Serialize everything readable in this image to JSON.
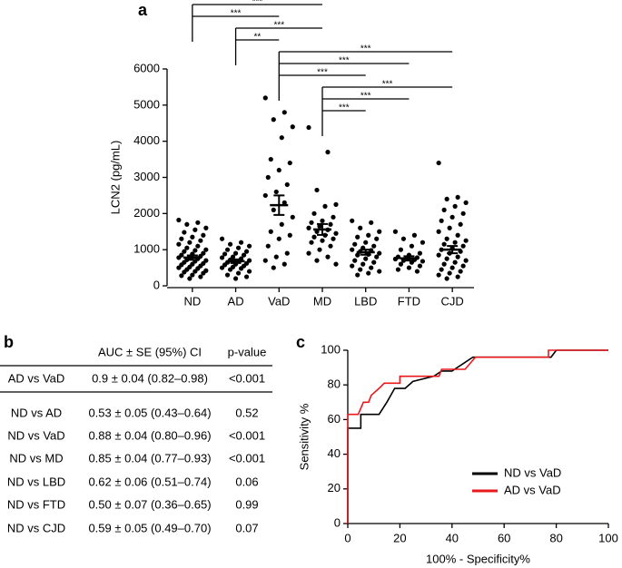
{
  "panel_labels": [
    "a",
    "b",
    "c"
  ],
  "chart_data": [
    {
      "type": "dot",
      "ylabel": "LCN2 (pg/mL)",
      "categories": [
        "ND",
        "AD",
        "VaD",
        "MD",
        "LBD",
        "FTD",
        "CJD"
      ],
      "points": [
        [
          1820,
          1750,
          1700,
          1600,
          1550,
          1480,
          1400,
          1350,
          1300,
          1250,
          1200,
          1150,
          1100,
          1050,
          1000,
          980,
          950,
          900,
          880,
          850,
          820,
          800,
          780,
          750,
          720,
          700,
          680,
          650,
          620,
          600,
          580,
          550,
          520,
          500,
          480,
          450,
          420,
          400,
          380,
          350,
          300,
          280,
          250,
          200
        ],
        [
          1300,
          1200,
          1150,
          1100,
          1050,
          1000,
          950,
          900,
          880,
          850,
          800,
          780,
          750,
          720,
          700,
          680,
          650,
          620,
          600,
          580,
          550,
          520,
          500,
          480,
          450,
          400,
          350,
          300,
          250,
          200
        ],
        [
          5200,
          4800,
          4600,
          4400,
          4100,
          3500,
          3400,
          3200,
          3000,
          2800,
          2600,
          2500,
          2300,
          2100,
          1900,
          1700,
          1500,
          1400,
          1300,
          1100,
          900,
          800,
          700,
          600,
          500
        ],
        [
          4380,
          3700,
          2650,
          2250,
          2200,
          2000,
          1900,
          1800,
          1750,
          1700,
          1650,
          1600,
          1550,
          1500,
          1450,
          1400,
          1350,
          1300,
          1250,
          1200,
          1100,
          1000,
          900,
          800,
          700,
          600
        ],
        [
          1800,
          1750,
          1600,
          1500,
          1400,
          1350,
          1300,
          1200,
          1150,
          1100,
          1050,
          1000,
          980,
          950,
          900,
          870,
          850,
          800,
          750,
          700,
          650,
          600,
          550,
          500,
          450,
          400,
          350,
          300
        ],
        [
          1500,
          1400,
          1300,
          1200,
          1100,
          1000,
          900,
          850,
          800,
          780,
          760,
          740,
          720,
          700,
          680,
          650,
          600,
          550,
          500,
          450,
          400
        ],
        [
          3400,
          2450,
          2400,
          2300,
          2200,
          2100,
          2000,
          1900,
          1800,
          1700,
          1600,
          1500,
          1400,
          1300,
          1250,
          1200,
          1150,
          1100,
          1050,
          1000,
          950,
          900,
          850,
          800,
          750,
          700,
          650,
          600,
          550,
          500,
          450,
          400,
          350,
          300,
          250,
          200
        ]
      ],
      "means": [
        780,
        680,
        2230,
        1560,
        930,
        760,
        1000
      ],
      "sem": [
        60,
        50,
        270,
        150,
        70,
        60,
        100
      ],
      "color": "#000000",
      "ylim": [
        0,
        6000
      ],
      "yticks": [
        0,
        1000,
        2000,
        3000,
        4000,
        5000,
        6000
      ],
      "comparisons": [
        {
          "from": "ND",
          "to": "MD",
          "label": "***"
        },
        {
          "from": "ND",
          "to": "VaD",
          "label": "***"
        },
        {
          "from": "AD",
          "to": "MD",
          "label": "***"
        },
        {
          "from": "AD",
          "to": "VaD",
          "label": "**"
        },
        {
          "from": "VaD",
          "to": "CJD",
          "label": "***"
        },
        {
          "from": "VaD",
          "to": "FTD",
          "label": "***"
        },
        {
          "from": "VaD",
          "to": "LBD",
          "label": "***"
        },
        {
          "from": "MD",
          "to": "CJD",
          "label": "***"
        },
        {
          "from": "MD",
          "to": "FTD",
          "label": "***"
        },
        {
          "from": "MD",
          "to": "LBD",
          "label": "***"
        }
      ]
    },
    {
      "type": "line",
      "xlabel": "100% - Specificity%",
      "ylabel": "Sensitivity %",
      "xlim": [
        0,
        100
      ],
      "ylim": [
        0,
        100
      ],
      "xticks": [
        0,
        20,
        40,
        60,
        80,
        100
      ],
      "yticks": [
        0,
        20,
        40,
        60,
        80,
        100
      ],
      "legend": "lower right",
      "series": [
        {
          "name": "ND vs VaD",
          "color": "#000000",
          "x": [
            0,
            0,
            5,
            5,
            12,
            15,
            18,
            22,
            25,
            33,
            36,
            40,
            44,
            48,
            78,
            80,
            100
          ],
          "values": [
            0,
            55,
            55,
            63,
            63,
            70,
            78,
            78,
            82,
            85,
            88,
            88,
            92,
            96,
            96,
            100,
            100
          ]
        },
        {
          "name": "AD vs VaD",
          "color": "#e8191c",
          "x": [
            0,
            0,
            4,
            6,
            8,
            9,
            12,
            14,
            20,
            20,
            35,
            36,
            45,
            49,
            77,
            77,
            100
          ],
          "values": [
            0,
            63,
            63,
            70,
            70,
            74,
            78,
            81,
            81,
            85,
            85,
            89,
            89,
            96,
            96,
            100,
            100
          ]
        }
      ]
    }
  ],
  "table": {
    "header": [
      "AUC ± SE (95%) CI",
      "p-value"
    ],
    "rows": [
      [
        "AD vs VaD",
        "0.9 ± 0.04 (0.82–0.98)",
        "<0.001"
      ],
      [
        "ND vs AD",
        "0.53 ± 0.05 (0.43–0.64)",
        "0.52"
      ],
      [
        "ND vs VaD",
        "0.88 ± 0.04 (0.80–0.96)",
        "<0.001"
      ],
      [
        "ND vs MD",
        "0.85 ± 0.04 (0.77–0.93)",
        "<0.001"
      ],
      [
        "ND vs LBD",
        "0.62 ± 0.06 (0.51–0.74)",
        "0.06"
      ],
      [
        "ND vs FTD",
        "0.50 ± 0.07 (0.36–0.65)",
        "0.99"
      ],
      [
        "ND vs CJD",
        "0.59 ± 0.05 (0.49–0.70)",
        "0.07"
      ]
    ]
  }
}
